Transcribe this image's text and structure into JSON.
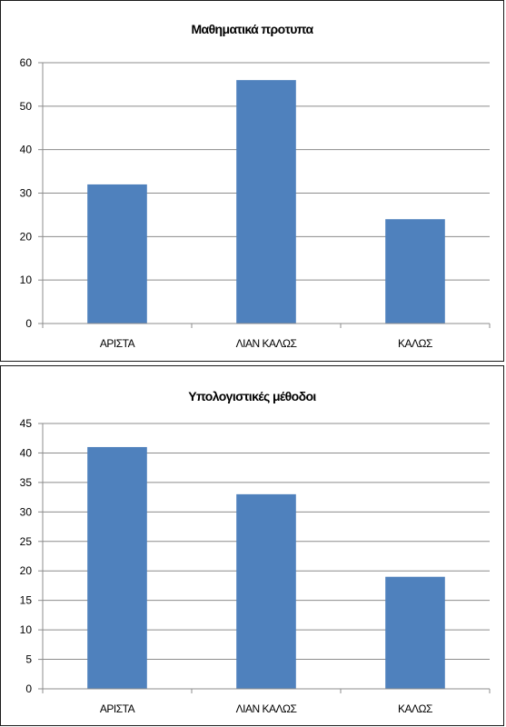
{
  "chart_data": [
    {
      "type": "bar",
      "title": "Μαθηματικά πρoτυπα",
      "categories": [
        "ΑΡΙΣΤΑ",
        "ΛΙΑΝ ΚΑΛΩΣ",
        "ΚΑΛΩΣ"
      ],
      "values": [
        32,
        56,
        24
      ],
      "ylim": [
        0,
        60
      ],
      "yticks": [
        0,
        10,
        20,
        30,
        40,
        50,
        60
      ],
      "xlabel": "",
      "ylabel": "",
      "grid": true,
      "legend": "none",
      "bar_color": "#4f81bd"
    },
    {
      "type": "bar",
      "title": "Υπολογιστικές μέθοδοι",
      "categories": [
        "ΑΡΙΣΤΑ",
        "ΛΙΑΝ ΚΑΛΩΣ",
        "ΚΑΛΩΣ"
      ],
      "values": [
        41,
        33,
        19
      ],
      "ylim": [
        0,
        45
      ],
      "yticks": [
        0,
        5,
        10,
        15,
        20,
        25,
        30,
        35,
        40,
        45
      ],
      "xlabel": "",
      "ylabel": "",
      "grid": true,
      "legend": "none",
      "bar_color": "#4f81bd"
    }
  ]
}
